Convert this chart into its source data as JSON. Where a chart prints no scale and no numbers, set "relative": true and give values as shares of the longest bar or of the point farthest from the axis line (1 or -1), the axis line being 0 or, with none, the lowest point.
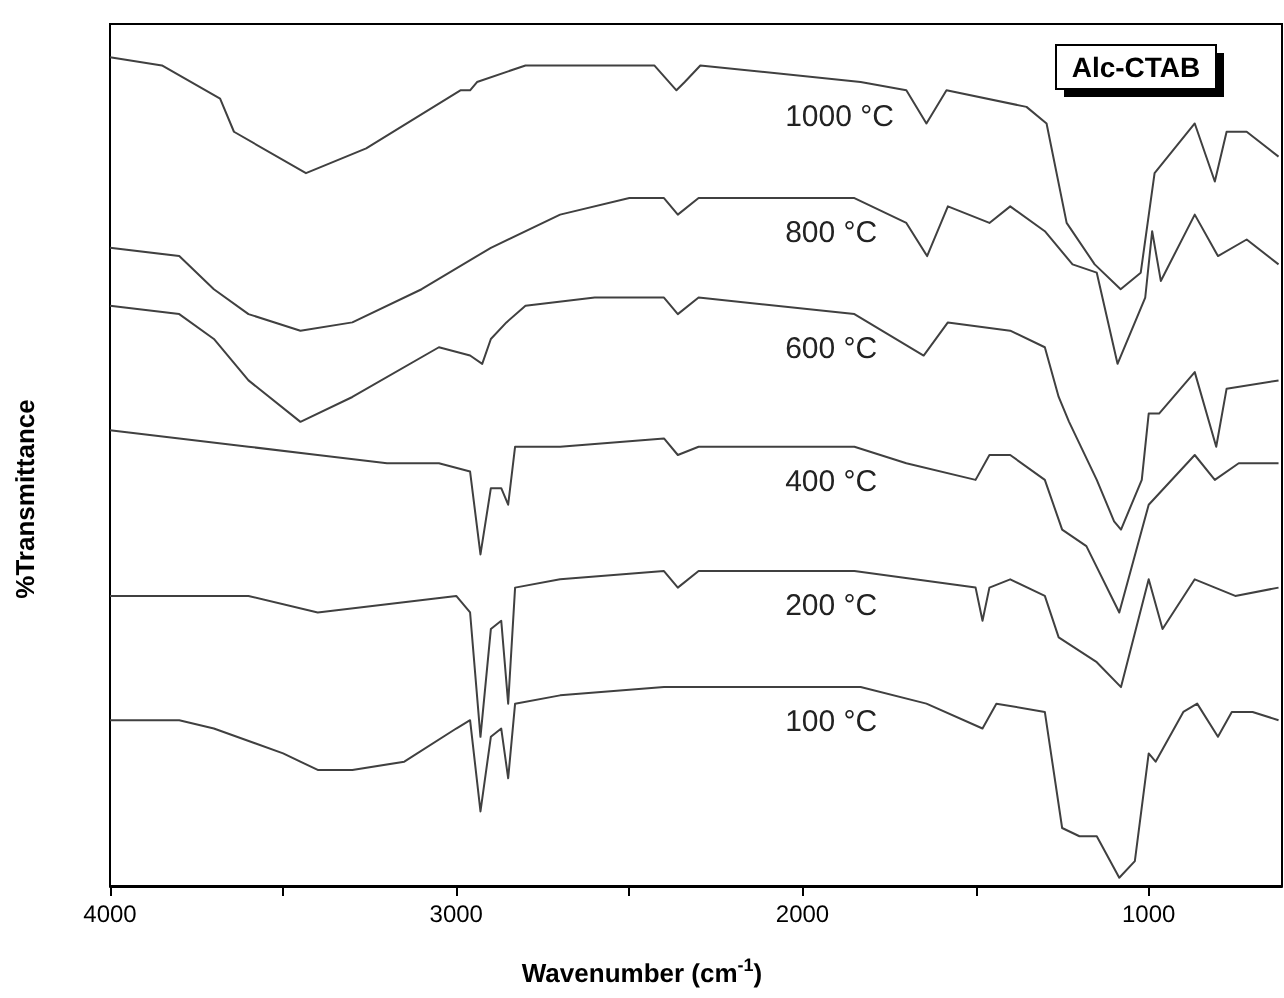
{
  "chart_data": {
    "type": "line",
    "relative": true,
    "xlabel": "Wavenumber (cm$^{-1}$)",
    "ylabel": "%Transmittance",
    "xlim": [
      4000,
      615
    ],
    "xticks": [
      4000,
      {
        "value": 3500,
        "label": null
      },
      3000,
      {
        "value": 2500,
        "label": null
      },
      2000,
      {
        "value": 1500,
        "label": null
      },
      1000
    ],
    "grid": false,
    "legend": false,
    "marker": "none",
    "line_style": "solid",
    "annotations": [
      "Alc-CTAB"
    ],
    "series": [
      {
        "name": "1000 °C",
        "color": "#404040",
        "x": [
          4000,
          3850,
          3682,
          3642,
          3434,
          3260,
          2988,
          2960,
          2940,
          2800,
          2428,
          2364,
          2340,
          2295,
          1832,
          1700,
          1642,
          1584,
          1353,
          1295,
          1237,
          1156,
          1081,
          1023,
          983,
          867,
          809,
          775,
          717,
          625
        ],
        "values": [
          1.0,
          0.99,
          0.95,
          0.91,
          0.86,
          0.89,
          0.96,
          0.96,
          0.97,
          0.99,
          0.99,
          0.96,
          0.97,
          0.99,
          0.97,
          0.96,
          0.92,
          0.96,
          0.94,
          0.92,
          0.8,
          0.75,
          0.72,
          0.74,
          0.86,
          0.92,
          0.85,
          0.91,
          0.91,
          0.88
        ]
      },
      {
        "name": "800 °C",
        "color": "#404040",
        "x": [
          4000,
          3800,
          3700,
          3600,
          3450,
          3300,
          3100,
          2900,
          2700,
          2500,
          2400,
          2360,
          2300,
          1850,
          1700,
          1640,
          1580,
          1460,
          1400,
          1300,
          1220,
          1150,
          1090,
          1010,
          990,
          965,
          867,
          800,
          717,
          625
        ],
        "values": [
          0.77,
          0.76,
          0.72,
          0.69,
          0.67,
          0.68,
          0.72,
          0.77,
          0.81,
          0.83,
          0.83,
          0.81,
          0.83,
          0.83,
          0.8,
          0.76,
          0.82,
          0.8,
          0.82,
          0.79,
          0.75,
          0.74,
          0.63,
          0.71,
          0.79,
          0.73,
          0.81,
          0.76,
          0.78,
          0.75
        ]
      },
      {
        "name": "600 °C",
        "color": "#404040",
        "x": [
          4000,
          3800,
          3700,
          3600,
          3450,
          3300,
          3050,
          2960,
          2925,
          2900,
          2855,
          2800,
          2600,
          2400,
          2360,
          2300,
          1850,
          1650,
          1580,
          1400,
          1300,
          1260,
          1230,
          1150,
          1100,
          1080,
          1020,
          1000,
          970,
          867,
          805,
          775,
          625
        ],
        "values": [
          0.7,
          0.69,
          0.66,
          0.61,
          0.56,
          0.59,
          0.65,
          0.64,
          0.63,
          0.66,
          0.68,
          0.7,
          0.71,
          0.71,
          0.69,
          0.71,
          0.69,
          0.64,
          0.68,
          0.67,
          0.65,
          0.59,
          0.56,
          0.49,
          0.44,
          0.43,
          0.49,
          0.57,
          0.57,
          0.62,
          0.53,
          0.6,
          0.61
        ]
      },
      {
        "name": "400 °C",
        "color": "#404040",
        "x": [
          4000,
          3800,
          3600,
          3400,
          3200,
          3050,
          2960,
          2930,
          2900,
          2870,
          2850,
          2830,
          2700,
          2400,
          2360,
          2300,
          1850,
          1700,
          1500,
          1460,
          1400,
          1300,
          1250,
          1180,
          1085,
          1000,
          867,
          809,
          740,
          625
        ],
        "values": [
          0.55,
          0.54,
          0.53,
          0.52,
          0.51,
          0.51,
          0.5,
          0.4,
          0.48,
          0.48,
          0.46,
          0.53,
          0.53,
          0.54,
          0.52,
          0.53,
          0.53,
          0.51,
          0.49,
          0.52,
          0.52,
          0.49,
          0.43,
          0.41,
          0.33,
          0.46,
          0.52,
          0.49,
          0.51,
          0.51
        ]
      },
      {
        "name": "200 °C",
        "color": "#404040",
        "x": [
          4000,
          3800,
          3600,
          3400,
          3200,
          3000,
          2960,
          2930,
          2900,
          2870,
          2850,
          2830,
          2700,
          2400,
          2360,
          2300,
          1850,
          1500,
          1480,
          1460,
          1400,
          1300,
          1260,
          1150,
          1080,
          1000,
          960,
          867,
          750,
          625
        ],
        "values": [
          0.35,
          0.35,
          0.35,
          0.33,
          0.34,
          0.35,
          0.33,
          0.18,
          0.31,
          0.32,
          0.22,
          0.36,
          0.37,
          0.38,
          0.36,
          0.38,
          0.38,
          0.36,
          0.32,
          0.36,
          0.37,
          0.35,
          0.3,
          0.27,
          0.24,
          0.37,
          0.31,
          0.37,
          0.35,
          0.36
        ]
      },
      {
        "name": "100 °C",
        "color": "#404040",
        "x": [
          4000,
          3800,
          3700,
          3500,
          3400,
          3300,
          3150,
          3000,
          2960,
          2930,
          2900,
          2870,
          2850,
          2830,
          2700,
          2400,
          2200,
          1832,
          1642,
          1480,
          1440,
          1300,
          1250,
          1200,
          1150,
          1085,
          1040,
          1000,
          980,
          900,
          860,
          800,
          760,
          700,
          625
        ],
        "values": [
          0.2,
          0.2,
          0.19,
          0.16,
          0.14,
          0.14,
          0.15,
          0.19,
          0.2,
          0.09,
          0.18,
          0.19,
          0.13,
          0.22,
          0.23,
          0.24,
          0.24,
          0.24,
          0.22,
          0.19,
          0.22,
          0.21,
          0.07,
          0.06,
          0.06,
          0.01,
          0.03,
          0.16,
          0.15,
          0.21,
          0.22,
          0.18,
          0.21,
          0.21,
          0.2
        ]
      }
    ]
  }
}
